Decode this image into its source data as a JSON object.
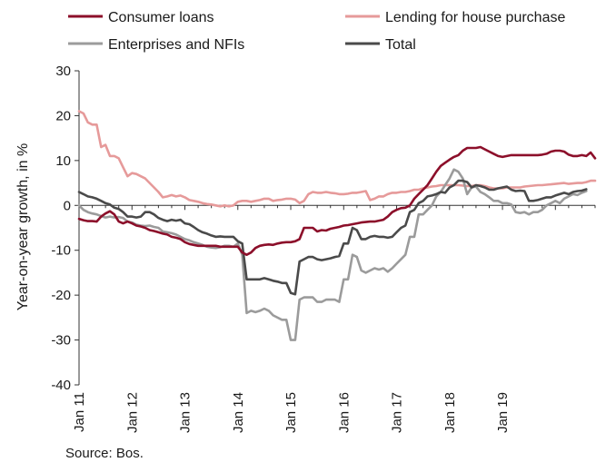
{
  "chart_data": {
    "type": "line",
    "title": "",
    "ylabel": "Year-on-year growth, in %",
    "xlabel": "",
    "ylim": [
      -40,
      30
    ],
    "yticks": [
      30,
      20,
      10,
      0,
      -10,
      -20,
      -30,
      -40
    ],
    "ytick_labels": [
      "30",
      "20",
      "10",
      "0",
      "-10",
      "-20",
      "-30",
      "-40"
    ],
    "xlim": [
      "2011-01",
      "2019-12"
    ],
    "xticks": [
      "2011-01",
      "2012-01",
      "2013-01",
      "2014-01",
      "2015-01",
      "2016-01",
      "2017-01",
      "2018-01",
      "2019-01"
    ],
    "xtick_labels": [
      "Jan 11",
      "Jan 12",
      "Jan 13",
      "Jan 14",
      "Jan 15",
      "Jan 16",
      "Jan 17",
      "Jan 18",
      "Jan 19"
    ],
    "x_start": "2011-01",
    "frequency": "monthly",
    "grid": false,
    "legend_position": "top",
    "series": [
      {
        "name": "Consumer loans",
        "color": "#8c0f2a",
        "values": [
          -3,
          -3.3,
          -3.5,
          -3.5,
          -3.6,
          -2.5,
          -1.8,
          -1.3,
          -2,
          -3.6,
          -4,
          -3.6,
          -4,
          -4.5,
          -4.7,
          -5,
          -5.5,
          -5.7,
          -6,
          -6.3,
          -6.5,
          -7,
          -7.2,
          -7.5,
          -8.2,
          -8.6,
          -8.8,
          -9,
          -9,
          -9,
          -9,
          -9,
          -9.2,
          -9.2,
          -9.2,
          -9.2,
          -9.2,
          -10.5,
          -11,
          -10.5,
          -9.5,
          -9,
          -8.8,
          -8.7,
          -8.8,
          -8.5,
          -8.3,
          -8.2,
          -8.2,
          -8,
          -7.5,
          -5,
          -5,
          -5,
          -5.8,
          -5.5,
          -5.6,
          -5.2,
          -5,
          -4.8,
          -4.5,
          -4.4,
          -4.2,
          -4,
          -3.8,
          -3.7,
          -3.6,
          -3.6,
          -3.4,
          -3.2,
          -2.5,
          -1.5,
          -1,
          -0.6,
          -0.5,
          0,
          1.5,
          2.5,
          3.5,
          4.5,
          6,
          7.5,
          8.8,
          9.5,
          10.2,
          10.8,
          11.2,
          12.2,
          12.8,
          12.8,
          12.8,
          13,
          12.5,
          12,
          11.5,
          11,
          10.8,
          11,
          11.2,
          11.2,
          11.2,
          11.2,
          11.2,
          11.2,
          11.2,
          11.3,
          11.5,
          12,
          12.2,
          12.2,
          12,
          11.3,
          11,
          11,
          11.2,
          11,
          11.8,
          10.5
        ]
      },
      {
        "name": "Lending for house purchase",
        "color": "#e69a9a",
        "values": [
          21,
          20.5,
          18.5,
          18,
          18,
          13,
          13.5,
          11,
          11,
          10.5,
          8.5,
          6.5,
          7.2,
          7,
          6.5,
          6,
          5,
          4,
          3,
          1.8,
          2,
          2.3,
          2,
          2.2,
          1.8,
          1.2,
          1,
          0.8,
          0.5,
          0.3,
          0.2,
          0,
          -0.2,
          0,
          -0.2,
          0,
          0.8,
          1,
          1,
          0.8,
          1,
          1.2,
          1.5,
          1.5,
          1,
          1.2,
          1.3,
          1.5,
          1.5,
          1.3,
          0.5,
          1,
          2.5,
          3,
          2.8,
          2.8,
          3,
          2.8,
          2.7,
          2.5,
          2.5,
          2.6,
          2.8,
          2.8,
          3,
          3.2,
          1.2,
          1.5,
          2,
          2,
          2.5,
          2.8,
          2.8,
          3,
          3,
          3.2,
          3.5,
          3.5,
          3.8,
          4,
          4.2,
          4.3,
          4.5,
          4.5,
          4.5,
          4.5,
          4.5,
          4.4,
          4.3,
          4.3,
          4.5,
          4.5,
          4.3,
          4,
          3.8,
          3.8,
          3.8,
          4,
          4,
          4,
          4,
          4.2,
          4.3,
          4.4,
          4.5,
          4.5,
          4.6,
          4.7,
          4.8,
          4.9,
          5,
          4.8,
          4.9,
          5,
          5,
          5.2,
          5.5,
          5.5
        ]
      },
      {
        "name": "Enterprises and NFIs",
        "color": "#9b9b9b",
        "values": [
          0,
          -1,
          -1.5,
          -1.8,
          -2,
          -2.4,
          -2.7,
          -2.5,
          -2.7,
          -2.6,
          -2.8,
          -3.6,
          -3.8,
          -4.3,
          -4.5,
          -4.6,
          -4.5,
          -4.8,
          -5,
          -5.8,
          -6,
          -6.2,
          -6.5,
          -7,
          -7.5,
          -7.8,
          -8.2,
          -8.5,
          -8.8,
          -9.2,
          -9.4,
          -9.5,
          -9.3,
          -9,
          -9,
          -9.2,
          -8.5,
          -11,
          -24,
          -23.5,
          -23.8,
          -23.5,
          -23,
          -23.5,
          -24.5,
          -25,
          -25.5,
          -25.5,
          -30,
          -30,
          -21,
          -20.5,
          -20.5,
          -20.5,
          -21.5,
          -21.5,
          -21,
          -21,
          -21,
          -21.5,
          -16.5,
          -16.5,
          -11,
          -11.5,
          -14.5,
          -15,
          -14.5,
          -14,
          -14.3,
          -14,
          -14.8,
          -14,
          -13,
          -12,
          -11,
          -7,
          -7,
          -2,
          -2,
          -1,
          0,
          2,
          3,
          4.5,
          6,
          8,
          7.5,
          6,
          2.5,
          4,
          4.2,
          3,
          2.5,
          1.8,
          1,
          1,
          0.5,
          0.5,
          0.2,
          -1.5,
          -1.7,
          -1.5,
          -2,
          -1.5,
          -1.5,
          -1,
          0,
          0.5,
          1,
          0.5,
          1.5,
          2,
          2.5,
          2.3,
          2.8,
          3.2
        ]
      },
      {
        "name": "Total",
        "color": "#4a4a4a",
        "values": [
          3,
          2.5,
          2,
          1.8,
          1.5,
          1,
          0.5,
          0.2,
          -0.5,
          -0.8,
          -1.5,
          -2.5,
          -2.5,
          -2.7,
          -2.5,
          -1.5,
          -1.5,
          -2,
          -2.8,
          -3.2,
          -3.5,
          -3.2,
          -3.4,
          -3.2,
          -4,
          -4.2,
          -4.8,
          -5.5,
          -6,
          -6.3,
          -6.7,
          -7,
          -6.9,
          -7,
          -7,
          -7,
          -8,
          -8.5,
          -16.5,
          -16.5,
          -16.5,
          -16.5,
          -16.2,
          -16.5,
          -16.8,
          -17,
          -17.3,
          -17.3,
          -19.5,
          -19.8,
          -12.5,
          -12,
          -11.5,
          -11.5,
          -12,
          -12.2,
          -12,
          -11.8,
          -11.5,
          -11.3,
          -8.5,
          -8.5,
          -5,
          -5.5,
          -7.5,
          -7.5,
          -7,
          -6.8,
          -7,
          -7,
          -7.2,
          -7,
          -6,
          -5,
          -4.5,
          -1.5,
          -1,
          0.5,
          1,
          2,
          2.2,
          2.5,
          3,
          2.8,
          4,
          4.5,
          5.5,
          5.5,
          5.2,
          4,
          4.5,
          4.3,
          4,
          3.5,
          3.5,
          3.8,
          4,
          4.2,
          3.5,
          3.2,
          3.3,
          3.2,
          1,
          1,
          1.2,
          1.5,
          1.8,
          1.8,
          2.2,
          2.5,
          2.8,
          2.5,
          3,
          3.2,
          3.3,
          3.6
        ]
      }
    ]
  },
  "source_note": "Source: Bos."
}
